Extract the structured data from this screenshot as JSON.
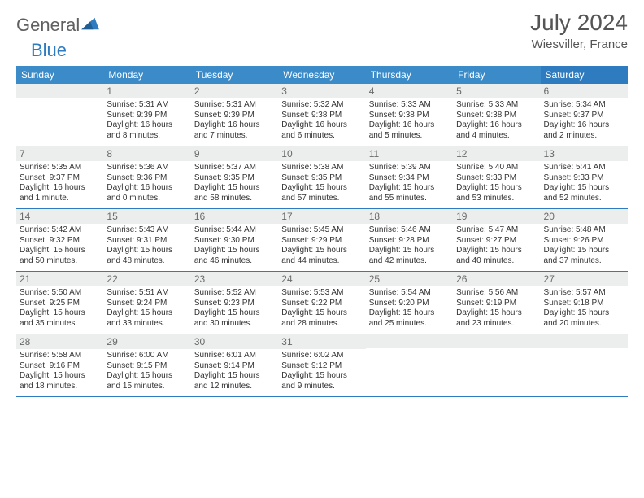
{
  "brand": {
    "part1": "General",
    "part2": "Blue"
  },
  "title": "July 2024",
  "location": "Wiesviller, France",
  "colors": {
    "header_bg": "#3b8bc9",
    "header_bg_sat": "#2f7bbf",
    "daynum_bg": "#eceded",
    "row_border": "#2f7bbf",
    "text": "#333333",
    "muted": "#6a6a6a"
  },
  "day_names": [
    "Sunday",
    "Monday",
    "Tuesday",
    "Wednesday",
    "Thursday",
    "Friday",
    "Saturday"
  ],
  "weeks": [
    [
      {
        "n": "",
        "lines": []
      },
      {
        "n": "1",
        "lines": [
          "Sunrise: 5:31 AM",
          "Sunset: 9:39 PM",
          "Daylight: 16 hours",
          "and 8 minutes."
        ]
      },
      {
        "n": "2",
        "lines": [
          "Sunrise: 5:31 AM",
          "Sunset: 9:39 PM",
          "Daylight: 16 hours",
          "and 7 minutes."
        ]
      },
      {
        "n": "3",
        "lines": [
          "Sunrise: 5:32 AM",
          "Sunset: 9:38 PM",
          "Daylight: 16 hours",
          "and 6 minutes."
        ]
      },
      {
        "n": "4",
        "lines": [
          "Sunrise: 5:33 AM",
          "Sunset: 9:38 PM",
          "Daylight: 16 hours",
          "and 5 minutes."
        ]
      },
      {
        "n": "5",
        "lines": [
          "Sunrise: 5:33 AM",
          "Sunset: 9:38 PM",
          "Daylight: 16 hours",
          "and 4 minutes."
        ]
      },
      {
        "n": "6",
        "lines": [
          "Sunrise: 5:34 AM",
          "Sunset: 9:37 PM",
          "Daylight: 16 hours",
          "and 2 minutes."
        ]
      }
    ],
    [
      {
        "n": "7",
        "lines": [
          "Sunrise: 5:35 AM",
          "Sunset: 9:37 PM",
          "Daylight: 16 hours",
          "and 1 minute."
        ]
      },
      {
        "n": "8",
        "lines": [
          "Sunrise: 5:36 AM",
          "Sunset: 9:36 PM",
          "Daylight: 16 hours",
          "and 0 minutes."
        ]
      },
      {
        "n": "9",
        "lines": [
          "Sunrise: 5:37 AM",
          "Sunset: 9:35 PM",
          "Daylight: 15 hours",
          "and 58 minutes."
        ]
      },
      {
        "n": "10",
        "lines": [
          "Sunrise: 5:38 AM",
          "Sunset: 9:35 PM",
          "Daylight: 15 hours",
          "and 57 minutes."
        ]
      },
      {
        "n": "11",
        "lines": [
          "Sunrise: 5:39 AM",
          "Sunset: 9:34 PM",
          "Daylight: 15 hours",
          "and 55 minutes."
        ]
      },
      {
        "n": "12",
        "lines": [
          "Sunrise: 5:40 AM",
          "Sunset: 9:33 PM",
          "Daylight: 15 hours",
          "and 53 minutes."
        ]
      },
      {
        "n": "13",
        "lines": [
          "Sunrise: 5:41 AM",
          "Sunset: 9:33 PM",
          "Daylight: 15 hours",
          "and 52 minutes."
        ]
      }
    ],
    [
      {
        "n": "14",
        "lines": [
          "Sunrise: 5:42 AM",
          "Sunset: 9:32 PM",
          "Daylight: 15 hours",
          "and 50 minutes."
        ]
      },
      {
        "n": "15",
        "lines": [
          "Sunrise: 5:43 AM",
          "Sunset: 9:31 PM",
          "Daylight: 15 hours",
          "and 48 minutes."
        ]
      },
      {
        "n": "16",
        "lines": [
          "Sunrise: 5:44 AM",
          "Sunset: 9:30 PM",
          "Daylight: 15 hours",
          "and 46 minutes."
        ]
      },
      {
        "n": "17",
        "lines": [
          "Sunrise: 5:45 AM",
          "Sunset: 9:29 PM",
          "Daylight: 15 hours",
          "and 44 minutes."
        ]
      },
      {
        "n": "18",
        "lines": [
          "Sunrise: 5:46 AM",
          "Sunset: 9:28 PM",
          "Daylight: 15 hours",
          "and 42 minutes."
        ]
      },
      {
        "n": "19",
        "lines": [
          "Sunrise: 5:47 AM",
          "Sunset: 9:27 PM",
          "Daylight: 15 hours",
          "and 40 minutes."
        ]
      },
      {
        "n": "20",
        "lines": [
          "Sunrise: 5:48 AM",
          "Sunset: 9:26 PM",
          "Daylight: 15 hours",
          "and 37 minutes."
        ]
      }
    ],
    [
      {
        "n": "21",
        "lines": [
          "Sunrise: 5:50 AM",
          "Sunset: 9:25 PM",
          "Daylight: 15 hours",
          "and 35 minutes."
        ]
      },
      {
        "n": "22",
        "lines": [
          "Sunrise: 5:51 AM",
          "Sunset: 9:24 PM",
          "Daylight: 15 hours",
          "and 33 minutes."
        ]
      },
      {
        "n": "23",
        "lines": [
          "Sunrise: 5:52 AM",
          "Sunset: 9:23 PM",
          "Daylight: 15 hours",
          "and 30 minutes."
        ]
      },
      {
        "n": "24",
        "lines": [
          "Sunrise: 5:53 AM",
          "Sunset: 9:22 PM",
          "Daylight: 15 hours",
          "and 28 minutes."
        ]
      },
      {
        "n": "25",
        "lines": [
          "Sunrise: 5:54 AM",
          "Sunset: 9:20 PM",
          "Daylight: 15 hours",
          "and 25 minutes."
        ]
      },
      {
        "n": "26",
        "lines": [
          "Sunrise: 5:56 AM",
          "Sunset: 9:19 PM",
          "Daylight: 15 hours",
          "and 23 minutes."
        ]
      },
      {
        "n": "27",
        "lines": [
          "Sunrise: 5:57 AM",
          "Sunset: 9:18 PM",
          "Daylight: 15 hours",
          "and 20 minutes."
        ]
      }
    ],
    [
      {
        "n": "28",
        "lines": [
          "Sunrise: 5:58 AM",
          "Sunset: 9:16 PM",
          "Daylight: 15 hours",
          "and 18 minutes."
        ]
      },
      {
        "n": "29",
        "lines": [
          "Sunrise: 6:00 AM",
          "Sunset: 9:15 PM",
          "Daylight: 15 hours",
          "and 15 minutes."
        ]
      },
      {
        "n": "30",
        "lines": [
          "Sunrise: 6:01 AM",
          "Sunset: 9:14 PM",
          "Daylight: 15 hours",
          "and 12 minutes."
        ]
      },
      {
        "n": "31",
        "lines": [
          "Sunrise: 6:02 AM",
          "Sunset: 9:12 PM",
          "Daylight: 15 hours",
          "and 9 minutes."
        ]
      },
      {
        "n": "",
        "lines": []
      },
      {
        "n": "",
        "lines": []
      },
      {
        "n": "",
        "lines": []
      }
    ]
  ]
}
